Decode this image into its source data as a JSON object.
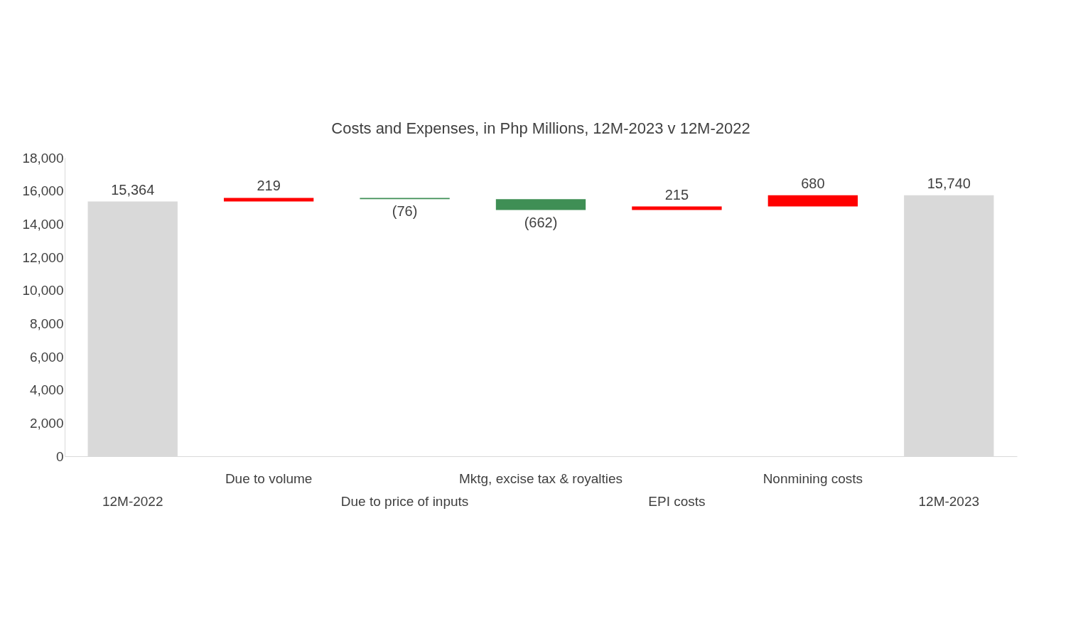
{
  "chart_data": {
    "type": "bar",
    "title": "Costs and Expenses, in Php Millions, 12M-2023 v 12M-2022",
    "categories": [
      "12M-2022",
      "Due to volume",
      "Due to price of inputs",
      "Mktg, excise tax & royalties",
      "EPI costs",
      "Nonmining costs",
      "12M-2023"
    ],
    "values": [
      15364,
      219,
      -76,
      -662,
      215,
      680,
      15740
    ],
    "base": [
      0,
      15364,
      15583,
      15507,
      14845,
      15060,
      0
    ],
    "colors": [
      "#d9d9d9",
      "#ff0000",
      "#3f8f55",
      "#3f8f55",
      "#ff0000",
      "#ff0000",
      "#d9d9d9"
    ],
    "value_labels": [
      "15,364",
      "219",
      "(76)",
      "(662)",
      "215",
      "680",
      "15,740"
    ],
    "ylim": [
      0,
      18000
    ],
    "yticks": [
      {
        "value": 0,
        "label": "0"
      },
      {
        "value": 2000,
        "label": "2,000"
      },
      {
        "value": 4000,
        "label": "4,000"
      },
      {
        "value": 6000,
        "label": "6,000"
      },
      {
        "value": 8000,
        "label": "8,000"
      },
      {
        "value": 10000,
        "label": "10,000"
      },
      {
        "value": 12000,
        "label": "12,000"
      },
      {
        "value": 14000,
        "label": "14,000"
      },
      {
        "value": 16000,
        "label": "16,000"
      },
      {
        "value": 18000,
        "label": "18,000"
      }
    ],
    "grid": false
  }
}
